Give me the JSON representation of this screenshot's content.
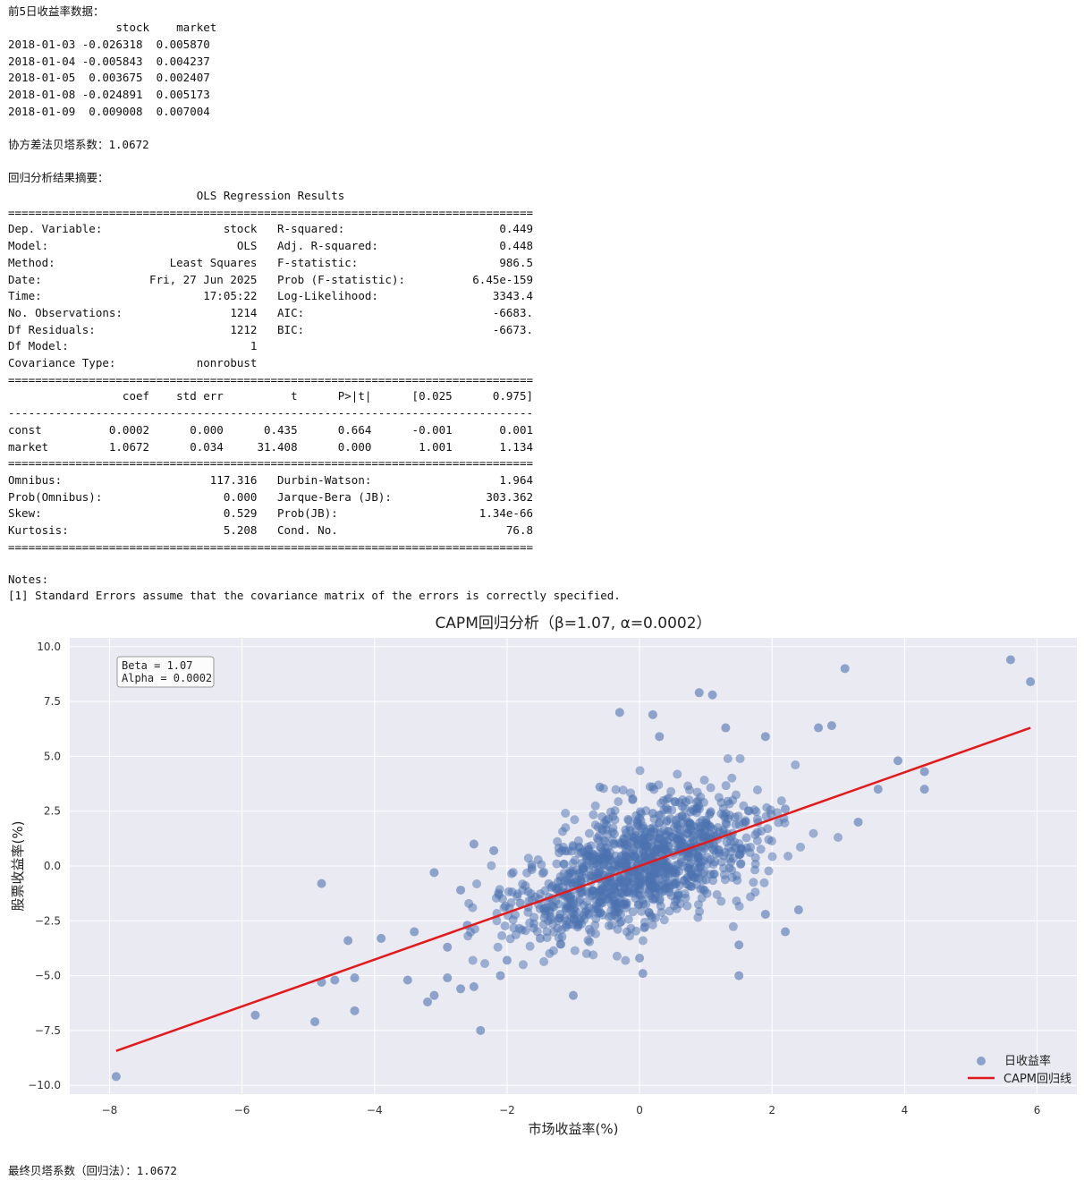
{
  "output": {
    "head_title": "前5日收益率数据：",
    "head_header": "                stock    market",
    "head_rows": [
      "2018-01-03 -0.026318  0.005870",
      "2018-01-04 -0.005843  0.004237",
      "2018-01-05  0.003675  0.002407",
      "2018-01-08 -0.024891  0.005173",
      "2018-01-09  0.009008  0.007004"
    ],
    "cov_beta_line": "协方差法贝塔系数：1.0672",
    "summary_title": "回归分析结果摘要：",
    "ols_lines": [
      "                            OLS Regression Results                            ",
      "==============================================================================",
      "Dep. Variable:                  stock   R-squared:                       0.449",
      "Model:                            OLS   Adj. R-squared:                  0.448",
      "Method:                 Least Squares   F-statistic:                     986.5",
      "Date:                Fri, 27 Jun 2025   Prob (F-statistic):          6.45e-159",
      "Time:                        17:05:22   Log-Likelihood:                 3343.4",
      "No. Observations:                1214   AIC:                            -6683.",
      "Df Residuals:                    1212   BIC:                            -6673.",
      "Df Model:                           1                                         ",
      "Covariance Type:            nonrobust                                         ",
      "==============================================================================",
      "                 coef    std err          t      P>|t|      [0.025      0.975]",
      "------------------------------------------------------------------------------",
      "const          0.0002      0.000      0.435      0.664      -0.001       0.001",
      "market         1.0672      0.034     31.408      0.000       1.001       1.134",
      "==============================================================================",
      "Omnibus:                      117.316   Durbin-Watson:                   1.964",
      "Prob(Omnibus):                  0.000   Jarque-Bera (JB):              303.362",
      "Skew:                           0.529   Prob(JB):                     1.34e-66",
      "Kurtosis:                       5.208   Cond. No.                         76.8",
      "=============================================================================="
    ],
    "notes_title": "Notes:",
    "notes_line": "[1] Standard Errors assume that the covariance matrix of the errors is correctly specified.",
    "final_line": "最终贝塔系数（回归法）：1.0672"
  },
  "chart_data": {
    "type": "scatter",
    "title": "CAPM回归分析（β=1.07, α=0.0002）",
    "xlabel": "市场收益率(%)",
    "ylabel": "股票收益率(%)",
    "xlim": [
      -8.6,
      6.6
    ],
    "ylim": [
      -10.4,
      10.4
    ],
    "xticks": [
      -8,
      -6,
      -4,
      -2,
      0,
      2,
      4,
      6
    ],
    "xtick_labels": [
      "−8",
      "−6",
      "−4",
      "−2",
      "0",
      "2",
      "4",
      "6"
    ],
    "yticks": [
      10.0,
      7.5,
      5.0,
      2.5,
      0.0,
      -2.5,
      -5.0,
      -7.5,
      -10.0
    ],
    "ytick_labels": [
      "10.0",
      "7.5",
      "5.0",
      "2.5",
      "0.0",
      "−2.5",
      "−5.0",
      "−7.5",
      "−10.0"
    ],
    "grid": true,
    "annotation": [
      "Beta = 1.07",
      "Alpha = 0.0002"
    ],
    "legend_position": "lower right",
    "n_points": 1214,
    "series": [
      {
        "name": "日收益率",
        "kind": "scatter",
        "color": "#4c72b0",
        "points": [
          [
            -7.9,
            -9.6
          ],
          [
            -5.8,
            -6.8
          ],
          [
            -4.9,
            -7.1
          ],
          [
            -4.8,
            -0.8
          ],
          [
            -4.8,
            -5.3
          ],
          [
            -4.6,
            -5.2
          ],
          [
            -4.4,
            -3.4
          ],
          [
            -4.3,
            -5.1
          ],
          [
            -4.3,
            -6.6
          ],
          [
            -3.9,
            -3.3
          ],
          [
            -3.5,
            -5.2
          ],
          [
            -3.4,
            -3.0
          ],
          [
            -3.2,
            -6.2
          ],
          [
            -3.1,
            -0.3
          ],
          [
            -3.1,
            -5.9
          ],
          [
            -2.9,
            -3.7
          ],
          [
            -2.9,
            -5.1
          ],
          [
            -2.7,
            -5.6
          ],
          [
            -2.7,
            -1.1
          ],
          [
            -2.6,
            -2.7
          ],
          [
            -2.5,
            -5.5
          ],
          [
            -2.5,
            1.0
          ],
          [
            -2.4,
            -7.5
          ],
          [
            -2.2,
            0.7
          ],
          [
            -2.1,
            -5.0
          ],
          [
            -2.0,
            -4.3
          ],
          [
            -1.5,
            -3.3
          ],
          [
            -1.0,
            -5.9
          ],
          [
            -0.6,
            3.6
          ],
          [
            -0.3,
            7.0
          ],
          [
            0.0,
            -4.2
          ],
          [
            0.05,
            -4.9
          ],
          [
            0.2,
            6.9
          ],
          [
            0.3,
            5.9
          ],
          [
            0.9,
            7.9
          ],
          [
            1.1,
            7.8
          ],
          [
            1.3,
            6.3
          ],
          [
            1.5,
            -3.6
          ],
          [
            1.5,
            -5.0
          ],
          [
            1.9,
            5.9
          ],
          [
            1.9,
            -2.2
          ],
          [
            2.2,
            -3.0
          ],
          [
            2.4,
            -2.0
          ],
          [
            2.7,
            6.3
          ],
          [
            2.9,
            6.4
          ],
          [
            3.1,
            9.0
          ],
          [
            3.3,
            2.0
          ],
          [
            3.6,
            3.5
          ],
          [
            3.9,
            4.8
          ],
          [
            4.3,
            4.3
          ],
          [
            4.3,
            3.5
          ],
          [
            5.6,
            9.4
          ],
          [
            5.9,
            8.4
          ],
          [
            0.2,
            2.4
          ],
          [
            -1.2,
            -2.2
          ],
          [
            0.8,
            1.6
          ],
          [
            1.6,
            2.0
          ],
          [
            -0.6,
            -1.4
          ],
          [
            2.2,
            2.6
          ],
          [
            -1.8,
            -1.7
          ]
        ]
      },
      {
        "name": "CAPM回归线",
        "kind": "line",
        "color": "#e31a1c",
        "x": [
          -7.9,
          5.9
        ],
        "y": [
          -8.43,
          6.3
        ]
      }
    ],
    "legend": [
      "日收益率",
      "CAPM回归线"
    ]
  }
}
